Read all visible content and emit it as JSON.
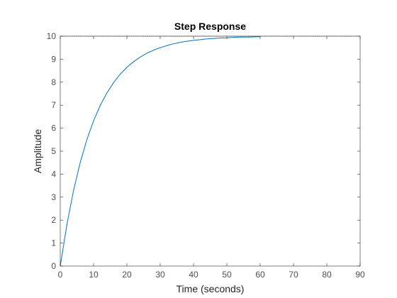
{
  "chart_data": {
    "type": "line",
    "title": "Step Response",
    "xlabel": "Time (seconds)",
    "ylabel": "Amplitude",
    "xlim": [
      0,
      90
    ],
    "ylim": [
      0,
      10
    ],
    "xticks": [
      0,
      10,
      20,
      30,
      40,
      50,
      60,
      70,
      80,
      90
    ],
    "yticks": [
      0,
      1,
      2,
      3,
      4,
      5,
      6,
      7,
      8,
      9,
      10
    ],
    "grid": false,
    "box": true,
    "series": [
      {
        "color": "#0072bd",
        "x": [
          0,
          2,
          4,
          6,
          8,
          10,
          12,
          14,
          16,
          18,
          20,
          22,
          24,
          26,
          28,
          30,
          32,
          34,
          36,
          38,
          40,
          42,
          44,
          46,
          48,
          50,
          52,
          54,
          56,
          58,
          60
        ],
        "y": [
          0,
          1.81,
          3.3,
          4.51,
          5.51,
          6.32,
          6.99,
          7.53,
          7.98,
          8.35,
          8.65,
          8.89,
          9.09,
          9.26,
          9.39,
          9.5,
          9.59,
          9.67,
          9.73,
          9.78,
          9.82,
          9.85,
          9.88,
          9.9,
          9.92,
          9.93,
          9.95,
          9.96,
          9.96,
          9.97,
          9.98
        ]
      }
    ],
    "reference_line": {
      "y": 10,
      "style": "dotted",
      "color": "#000000"
    }
  }
}
